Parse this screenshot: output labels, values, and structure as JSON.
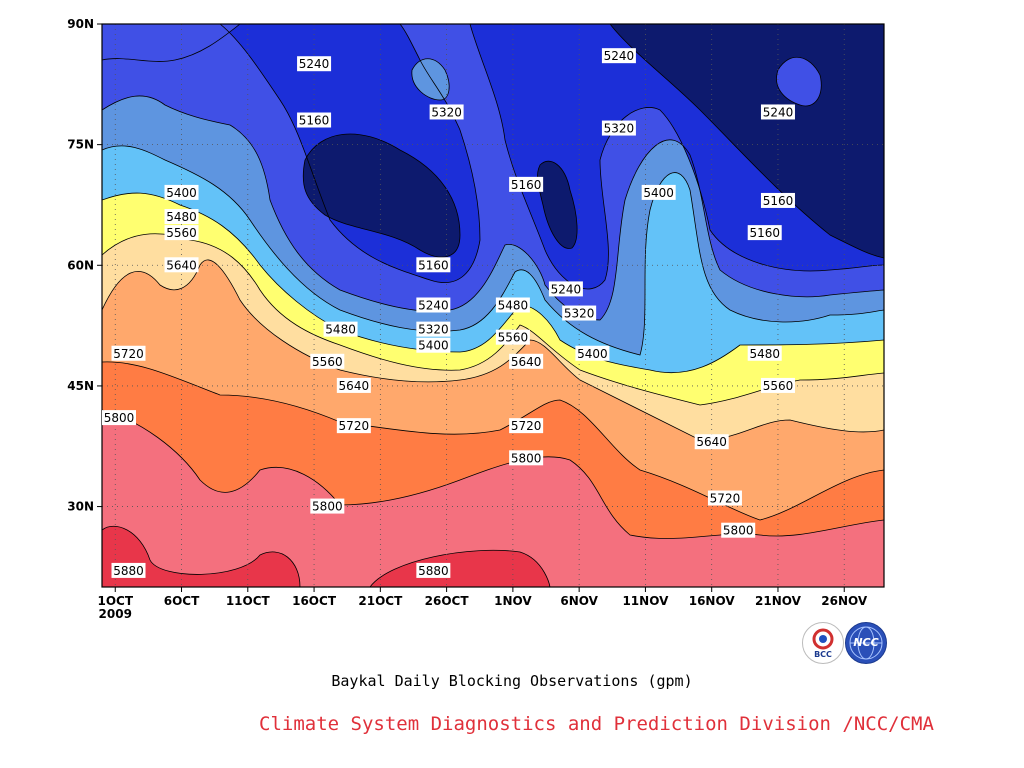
{
  "chart_data": {
    "type": "heatmap",
    "subtype": "filled-contour",
    "title": "Baykal Daily Blocking Observations (gpm)",
    "xlabel": "",
    "ylabel": "",
    "x_ticks": [
      "1OCT\n2009",
      "6OCT",
      "11OCT",
      "16OCT",
      "21OCT",
      "26OCT",
      "1NOV",
      "6NOV",
      "11NOV",
      "16NOV",
      "21NOV",
      "26NOV"
    ],
    "xlim": [
      "2009-09-30",
      "2009-11-28"
    ],
    "y_ticks": [
      "30N",
      "45N",
      "60N",
      "75N",
      "90N"
    ],
    "ylim": [
      20,
      90
    ],
    "contour_levels": [
      5160,
      5240,
      5320,
      5400,
      5480,
      5560,
      5640,
      5720,
      5800,
      5880
    ],
    "colors": [
      "#0d1a6e",
      "#1c2fd8",
      "#4050e6",
      "#5e95e0",
      "#63c2f8",
      "#ffff70",
      "#ffdea0",
      "#ffa86c",
      "#ff7c44",
      "#f4707e",
      "#e8364a"
    ],
    "contour_labels": [
      {
        "value": 5240,
        "date": "2009-10-16",
        "lat": 85
      },
      {
        "value": 5160,
        "date": "2009-10-16",
        "lat": 78
      },
      {
        "value": 5320,
        "date": "2009-10-26",
        "lat": 79
      },
      {
        "value": 5240,
        "date": "2009-11-08",
        "lat": 86
      },
      {
        "value": 5320,
        "date": "2009-11-08",
        "lat": 77
      },
      {
        "value": 5160,
        "date": "2009-11-01",
        "lat": 70
      },
      {
        "value": 5400,
        "date": "2009-11-11",
        "lat": 69
      },
      {
        "value": 5240,
        "date": "2009-11-20",
        "lat": 79
      },
      {
        "value": 5160,
        "date": "2009-11-20",
        "lat": 68
      },
      {
        "value": 5160,
        "date": "2009-11-19",
        "lat": 64
      },
      {
        "value": 5400,
        "date": "2009-10-06",
        "lat": 69
      },
      {
        "value": 5480,
        "date": "2009-10-06",
        "lat": 66
      },
      {
        "value": 5560,
        "date": "2009-10-06",
        "lat": 64
      },
      {
        "value": 5640,
        "date": "2009-10-06",
        "lat": 60
      },
      {
        "value": 5160,
        "date": "2009-10-25",
        "lat": 60
      },
      {
        "value": 5240,
        "date": "2009-10-25",
        "lat": 55
      },
      {
        "value": 5320,
        "date": "2009-10-25",
        "lat": 52
      },
      {
        "value": 5400,
        "date": "2009-10-25",
        "lat": 50
      },
      {
        "value": 5480,
        "date": "2009-10-18",
        "lat": 52
      },
      {
        "value": 5560,
        "date": "2009-10-17",
        "lat": 48
      },
      {
        "value": 5640,
        "date": "2009-10-19",
        "lat": 45
      },
      {
        "value": 5720,
        "date": "2009-10-19",
        "lat": 40
      },
      {
        "value": 5800,
        "date": "2009-10-17",
        "lat": 30
      },
      {
        "value": 5880,
        "date": "2009-10-25",
        "lat": 22
      },
      {
        "value": 5720,
        "date": "2009-10-02",
        "lat": 49
      },
      {
        "value": 5800,
        "date": "2009-09-30",
        "lat": 41
      },
      {
        "value": 5880,
        "date": "2009-10-02",
        "lat": 22
      },
      {
        "value": 5480,
        "date": "2009-10-31",
        "lat": 55
      },
      {
        "value": 5560,
        "date": "2009-10-31",
        "lat": 51
      },
      {
        "value": 5640,
        "date": "2009-11-01",
        "lat": 48
      },
      {
        "value": 5720,
        "date": "2009-11-01",
        "lat": 40
      },
      {
        "value": 5800,
        "date": "2009-11-01",
        "lat": 36
      },
      {
        "value": 5240,
        "date": "2009-11-04",
        "lat": 57
      },
      {
        "value": 5320,
        "date": "2009-11-05",
        "lat": 54
      },
      {
        "value": 5400,
        "date": "2009-11-06",
        "lat": 49
      },
      {
        "value": 5480,
        "date": "2009-11-19",
        "lat": 49
      },
      {
        "value": 5560,
        "date": "2009-11-20",
        "lat": 45
      },
      {
        "value": 5640,
        "date": "2009-11-15",
        "lat": 38
      },
      {
        "value": 5720,
        "date": "2009-11-16",
        "lat": 31
      },
      {
        "value": 5800,
        "date": "2009-11-17",
        "lat": 27
      }
    ],
    "grid": true
  },
  "credit": "Climate System Diagnostics and Prediction Division /NCC/CMA",
  "logos": {
    "bcc": "BCC",
    "ncc": "NCC"
  }
}
